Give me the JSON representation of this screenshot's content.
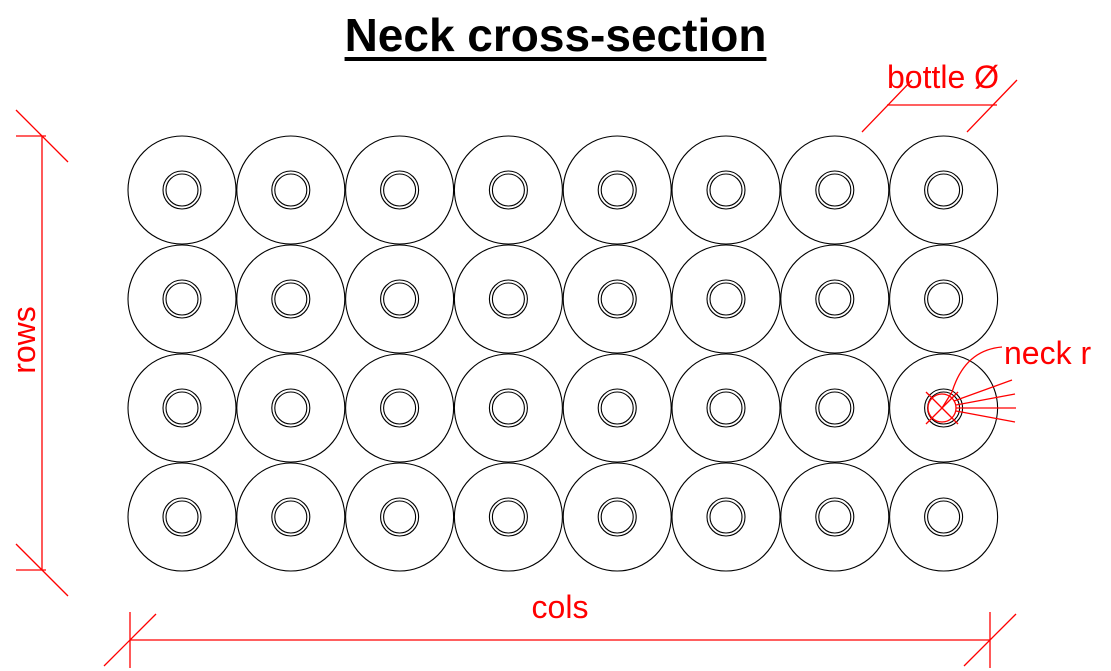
{
  "title": "Neck cross-section",
  "labels": {
    "bottle_diameter": "bottle Ø",
    "neck_radius": "neck r",
    "rows": "rows",
    "cols": "cols"
  },
  "grid": {
    "rows": 4,
    "cols": 8
  },
  "colors": {
    "geometry": "#000000",
    "dimension": "#ff0000"
  }
}
